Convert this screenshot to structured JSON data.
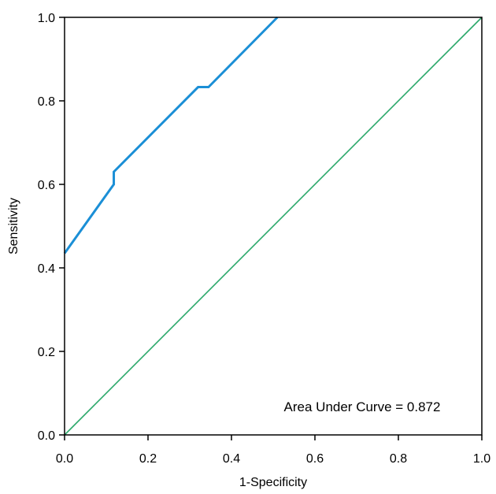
{
  "chart_data": {
    "type": "line",
    "title": "",
    "xlabel": "1-Specificity",
    "ylabel": "Sensitivity",
    "xlim": [
      0.0,
      1.0
    ],
    "ylim": [
      0.0,
      1.0
    ],
    "x_ticks": [
      "0.0",
      "0.2",
      "0.4",
      "0.6",
      "0.8",
      "1.0"
    ],
    "y_ticks": [
      "0.0",
      "0.2",
      "0.4",
      "0.6",
      "0.8",
      "1.0"
    ],
    "grid": false,
    "annotation": "Area Under Curve = 0.872",
    "series": [
      {
        "color": "#1b8fd6",
        "x": [
          0.0,
          0.118,
          0.118,
          0.32,
          0.345,
          0.51
        ],
        "y": [
          0.435,
          0.6,
          0.63,
          0.833,
          0.833,
          1.0
        ]
      },
      {
        "color": "#2aa86a",
        "x": [
          0.0,
          1.0
        ],
        "y": [
          0.0,
          1.0
        ]
      }
    ]
  }
}
